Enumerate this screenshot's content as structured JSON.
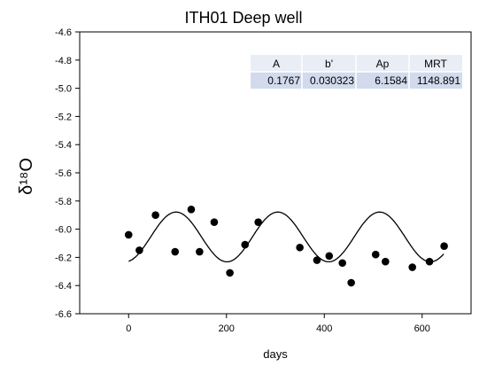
{
  "chart_data": {
    "type": "scatter",
    "title": "ITH01 Deep well",
    "xlabel": "days",
    "ylabel": "δ¹⁸O",
    "xlim": [
      -100,
      700
    ],
    "ylim": [
      -6.6,
      -4.6
    ],
    "xticks": [
      0,
      200,
      400,
      600
    ],
    "xtick_labels": [
      "0",
      "200",
      "400",
      "600"
    ],
    "yticks": [
      -4.6,
      -4.8,
      -5.0,
      -5.2,
      -5.4,
      -5.6,
      -5.8,
      -6.0,
      -6.2,
      -6.4,
      -6.6
    ],
    "ytick_labels": [
      "-4.6",
      "-4.8",
      "-5.0",
      "-5.2",
      "-5.4",
      "-5.6",
      "-5.8",
      "-6.0",
      "-6.2",
      "-6.4",
      "-6.6"
    ],
    "grid": false,
    "series": [
      {
        "kind": "points",
        "x": [
          0,
          22,
          55,
          95,
          128,
          145,
          175,
          207,
          238,
          265,
          350,
          385,
          410,
          437,
          455,
          505,
          525,
          580,
          615,
          645
        ],
        "y": [
          -6.04,
          -6.15,
          -5.9,
          -6.16,
          -5.86,
          -6.16,
          -5.95,
          -6.31,
          -6.11,
          -5.95,
          -6.13,
          -6.22,
          -6.19,
          -6.24,
          -6.38,
          -6.18,
          -6.23,
          -6.27,
          -6.23,
          -6.12
        ]
      },
      {
        "kind": "curve",
        "function": "y = mean + A*sin(2*pi*(x - phase)/period)",
        "mean": -6.055,
        "A": 0.1767,
        "period": 208,
        "phase": 45,
        "x_range": [
          0,
          645
        ]
      }
    ],
    "table": {
      "headers": [
        "A",
        "b'",
        "Ap",
        "MRT"
      ],
      "values": [
        "0.1767",
        "0.030323",
        "6.1584",
        "1148.891"
      ]
    }
  }
}
